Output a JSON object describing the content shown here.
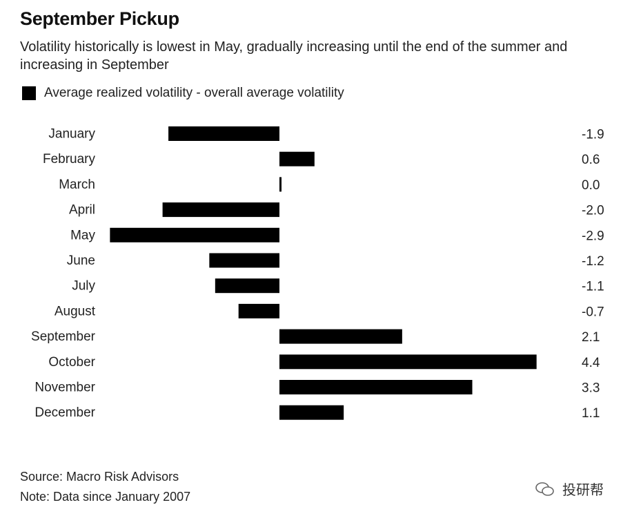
{
  "title": "September Pickup",
  "subtitle": "Volatility historically is lowest in May, gradually increasing until the end of the summer and increasing in September",
  "legend_label": "Average realized volatility - overall average volatility",
  "source": "Source: Macro Risk Advisors",
  "note": "Note: Data since January 2007",
  "watermark": "投研帮",
  "colors": {
    "bar": "#000000",
    "text": "#222222"
  },
  "chart_data": {
    "type": "bar",
    "orientation": "horizontal",
    "categories": [
      "January",
      "February",
      "March",
      "April",
      "May",
      "June",
      "July",
      "August",
      "September",
      "October",
      "November",
      "December"
    ],
    "values": [
      -1.9,
      0.6,
      0.0,
      -2.0,
      -2.9,
      -1.2,
      -1.1,
      -0.7,
      2.1,
      4.4,
      3.3,
      1.1
    ],
    "value_labels": [
      "-1.9",
      "0.6",
      "0.0",
      "-2.0",
      "-2.9",
      "-1.2",
      "-1.1",
      "-0.7",
      "2.1",
      "4.4",
      "3.3",
      "1.1"
    ],
    "title": "September Pickup",
    "legend": [
      "Average realized volatility - overall average volatility"
    ],
    "legend_position": "top-left",
    "grid": false
  }
}
